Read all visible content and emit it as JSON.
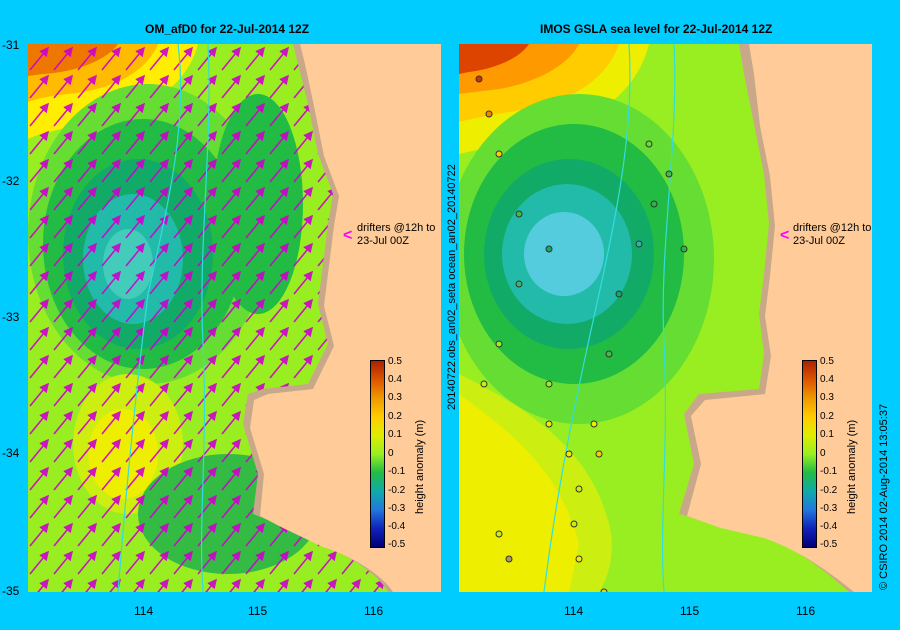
{
  "left_panel": {
    "title": "OM_afD0 for 22-Jul-2014 12Z"
  },
  "right_panel": {
    "title": "IMOS GSLA sea level  for 22-Jul-2014 12Z"
  },
  "y_ticks": [
    "-31",
    "-32",
    "-33",
    "-34",
    "-35"
  ],
  "x_ticks": [
    "114",
    "115",
    "116"
  ],
  "drifter_note": {
    "line1": "drifters @12h to",
    "line2": "23-Jul 00Z"
  },
  "colorbar": {
    "title": "height anomaly (m)",
    "labels": [
      "0.5",
      "0.4",
      "0.3",
      "0.2",
      "0.1",
      "0",
      "-0.1",
      "-0.2",
      "-0.3",
      "-0.4",
      "-0.5"
    ]
  },
  "side_text": {
    "source": "20140722.obs_an02_seta   ocean_an02_20140722",
    "credit": "© CSIRO 2014   02-Aug-2014 13:05:37"
  },
  "colors": {
    "background": "#00ccff",
    "land": "#ffcc99",
    "coast": "#c8a888",
    "arrows": "#cc00cc",
    "drifter": "#ff00ff"
  }
}
